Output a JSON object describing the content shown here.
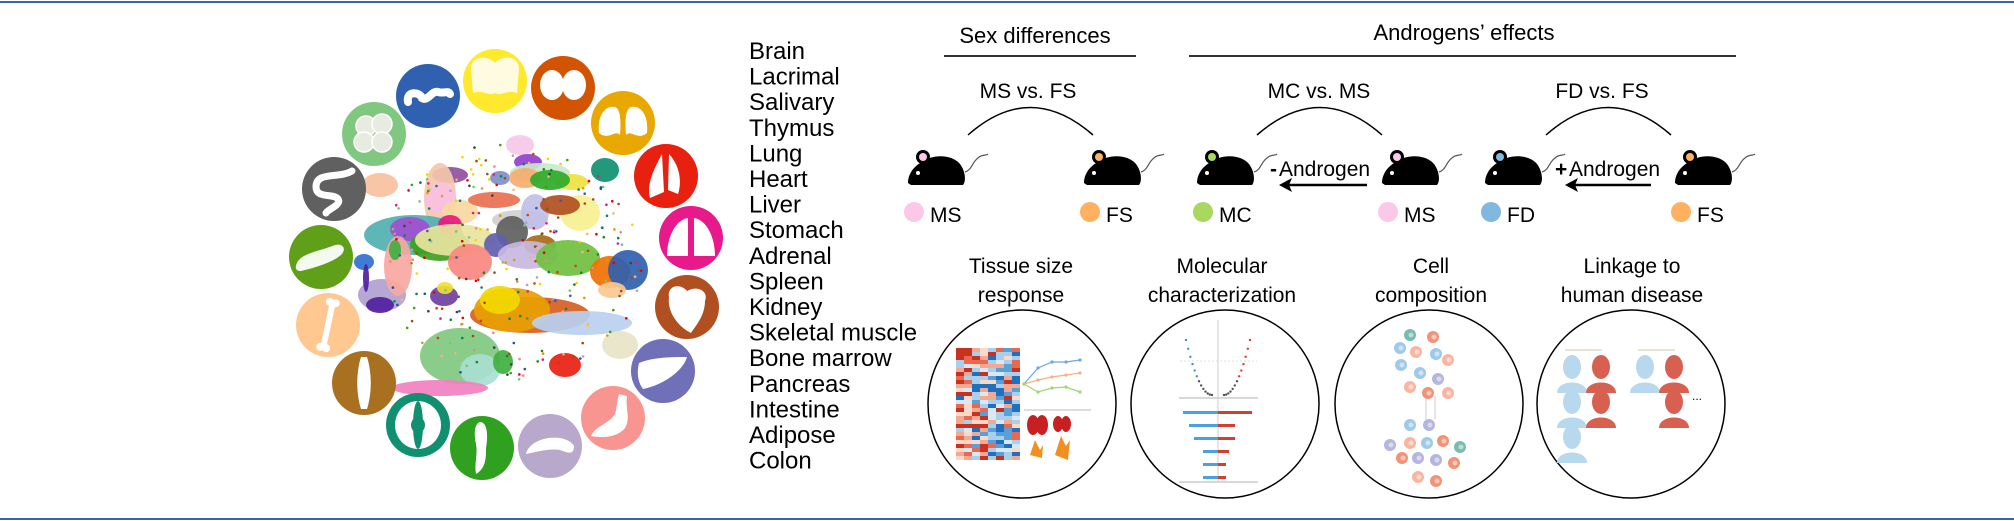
{
  "atlas": {
    "organs": [
      {
        "name": "Brain",
        "color": "#f2d800",
        "circle": "#ffe92c",
        "icon": "brain-icon"
      },
      {
        "name": "Lacrimal",
        "color": "#cc4400",
        "circle": "#d35400",
        "icon": "lacrimal-gland-icon"
      },
      {
        "name": "Salivary",
        "color": "#e09a00",
        "circle": "#e8a800",
        "icon": "salivary-gland-icon"
      },
      {
        "name": "Thymus",
        "color": "#e00010",
        "circle": "#e8200f",
        "icon": "thymus-icon"
      },
      {
        "name": "Lung",
        "color": "#e8197a",
        "circle": "#e8198a",
        "icon": "lung-icon"
      },
      {
        "name": "Heart",
        "color": "#b04010",
        "circle": "#b05020",
        "icon": "heart-icon"
      },
      {
        "name": "Liver",
        "color": "#5050a8",
        "circle": "#7070b8",
        "icon": "liver-icon"
      },
      {
        "name": "Stomach",
        "color": "#f88080",
        "circle": "#f89590",
        "icon": "stomach-icon"
      },
      {
        "name": "Adrenal",
        "color": "#b0a0d0",
        "circle": "#b8a8cc",
        "icon": "adrenal-icon"
      },
      {
        "name": "Spleen",
        "color": "#1a8a1a",
        "circle": "#30a020",
        "icon": "spleen-icon"
      },
      {
        "name": "Kidney",
        "color": "#0a8060",
        "circle": "#109070",
        "icon": "kidney-icon"
      },
      {
        "name": "Skeletal muscle",
        "color": "#8a5a10",
        "circle": "#a87020",
        "icon": "muscle-icon"
      },
      {
        "name": "Bone marrow",
        "color": "#ffb070",
        "circle": "#ffc890",
        "icon": "bone-icon"
      },
      {
        "name": "Pancreas",
        "color": "#40a010",
        "circle": "#60a018",
        "icon": "pancreas-icon"
      },
      {
        "name": "Intestine",
        "color": "#404040",
        "circle": "#606060",
        "icon": "intestine-icon"
      },
      {
        "name": "Adipose",
        "color": "#70c870",
        "circle": "#80c880",
        "icon": "adipose-icon"
      },
      {
        "name": "Colon",
        "color": "#1a50a8",
        "circle": "#3060b0",
        "icon": "colon-icon"
      }
    ]
  },
  "comparisons": {
    "sex_title": "Sex differences",
    "androgen_title": "Androgens’ effects",
    "groups": [
      {
        "title": "MS vs. FS",
        "left": {
          "label": "MS",
          "color": "#fbc8e8"
        },
        "right": {
          "label": "FS",
          "color": "#ffb060"
        }
      },
      {
        "title": "MC vs. MS",
        "left": {
          "label": "MC",
          "color": "#a8d860"
        },
        "right": {
          "label": "MS",
          "color": "#fbc8e8"
        },
        "arrow_sign": "-",
        "arrow_sign_color": "#2a90d0",
        "arrow_label": "Androgen"
      },
      {
        "title": "FD vs. FS",
        "left": {
          "label": "FD",
          "color": "#80b8e0"
        },
        "right": {
          "label": "FS",
          "color": "#ffb060"
        },
        "arrow_sign": "+",
        "arrow_sign_color": "#e00000",
        "arrow_label": "Androgen"
      }
    ]
  },
  "analyses": [
    {
      "line1": "Tissue size",
      "line2": "response"
    },
    {
      "line1": "Molecular",
      "line2": "characterization"
    },
    {
      "line1": "Cell",
      "line2": "composition"
    },
    {
      "line1": "Linkage to",
      "line2": "human disease"
    }
  ],
  "linkage_ellipsis": "...",
  "frame_color": "#3b64b0"
}
